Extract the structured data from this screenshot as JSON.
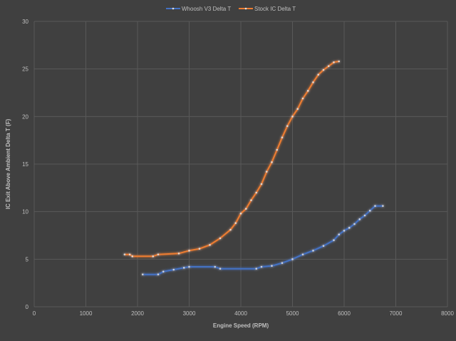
{
  "chart_data": {
    "type": "line",
    "title": "",
    "xlabel": "Engine Speed (RPM)",
    "ylabel": "IC Exit  Above Ambient Delta T (F)",
    "xlim": [
      0,
      8000
    ],
    "ylim": [
      0,
      30
    ],
    "xticks": [
      0,
      1000,
      2000,
      3000,
      4000,
      5000,
      6000,
      7000,
      8000
    ],
    "yticks": [
      0,
      5,
      10,
      15,
      20,
      25,
      30
    ],
    "grid": true,
    "legend_position": "top",
    "series": [
      {
        "name": "Whoosh V3 Delta T",
        "color": "#4472c4",
        "x": [
          2100,
          2400,
          2500,
          2700,
          2900,
          3000,
          3500,
          3600,
          4300,
          4400,
          4600,
          4800,
          5000,
          5200,
          5400,
          5600,
          5800,
          5900,
          6000,
          6100,
          6200,
          6300,
          6400,
          6500,
          6600,
          6750
        ],
        "y": [
          3.4,
          3.4,
          3.7,
          3.9,
          4.1,
          4.2,
          4.2,
          4.0,
          4.0,
          4.2,
          4.3,
          4.6,
          5.0,
          5.5,
          5.9,
          6.4,
          7.0,
          7.6,
          8.0,
          8.3,
          8.7,
          9.2,
          9.6,
          10.1,
          10.6,
          10.6
        ]
      },
      {
        "name": "Stock IC Delta T",
        "color": "#ed7d31",
        "x": [
          1750,
          1850,
          1900,
          2300,
          2400,
          2800,
          3000,
          3200,
          3400,
          3600,
          3800,
          3900,
          4000,
          4100,
          4200,
          4300,
          4400,
          4500,
          4600,
          4700,
          4800,
          4900,
          5000,
          5100,
          5200,
          5300,
          5400,
          5500,
          5600,
          5700,
          5800,
          5900
        ],
        "y": [
          5.5,
          5.5,
          5.3,
          5.3,
          5.5,
          5.6,
          5.9,
          6.1,
          6.5,
          7.2,
          8.1,
          8.8,
          9.8,
          10.3,
          11.2,
          12.0,
          12.9,
          14.2,
          15.2,
          16.5,
          17.8,
          19.0,
          20.0,
          20.8,
          21.9,
          22.7,
          23.6,
          24.4,
          24.9,
          25.3,
          25.7,
          25.8
        ]
      }
    ]
  }
}
